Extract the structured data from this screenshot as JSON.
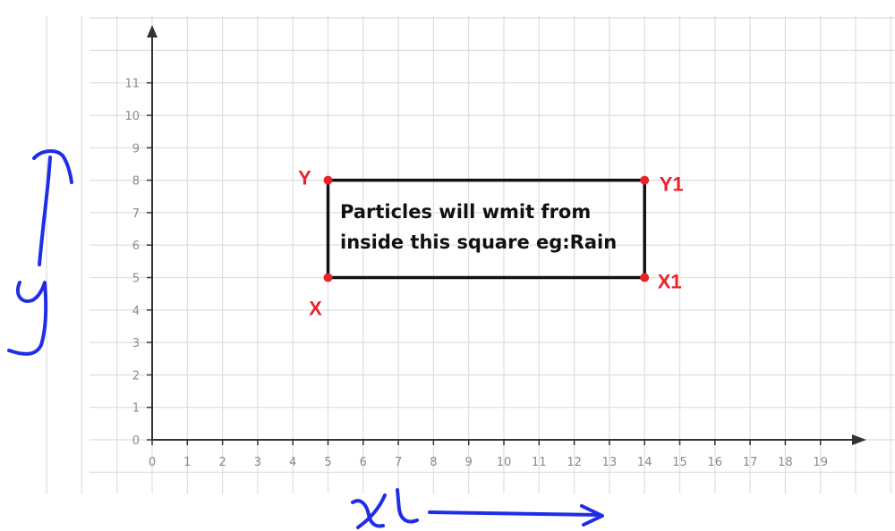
{
  "chart_data": {
    "type": "scatter",
    "x_ticks": [
      "0",
      "1",
      "2",
      "3",
      "4",
      "5",
      "6",
      "7",
      "8",
      "9",
      "10",
      "11",
      "12",
      "13",
      "14",
      "15",
      "16",
      "17",
      "18",
      "19"
    ],
    "y_ticks": [
      "0",
      "1",
      "2",
      "3",
      "4",
      "5",
      "6",
      "7",
      "8",
      "9",
      "10",
      "11"
    ],
    "xlim": [
      0,
      20
    ],
    "ylim": [
      0,
      12
    ],
    "grid": true,
    "points": [
      {
        "label": "Y",
        "x": 5,
        "y": 8
      },
      {
        "label": "Y1",
        "x": 14,
        "y": 8
      },
      {
        "label": "X",
        "x": 5,
        "y": 5
      },
      {
        "label": "X1",
        "x": 14,
        "y": 5
      }
    ],
    "rectangle": {
      "x_min": 5,
      "x_max": 14,
      "y_min": 5,
      "y_max": 8
    },
    "annotation": [
      "Particles will wmit from",
      "inside this square eg:Rain"
    ]
  },
  "handwritten_axis_labels": {
    "x": "x",
    "y": "y"
  },
  "colors": {
    "grid": "#dedede",
    "axis": "#333333",
    "rectangle": "#111111",
    "points": "#e8232b",
    "handwriting": "#1f2ee6"
  }
}
